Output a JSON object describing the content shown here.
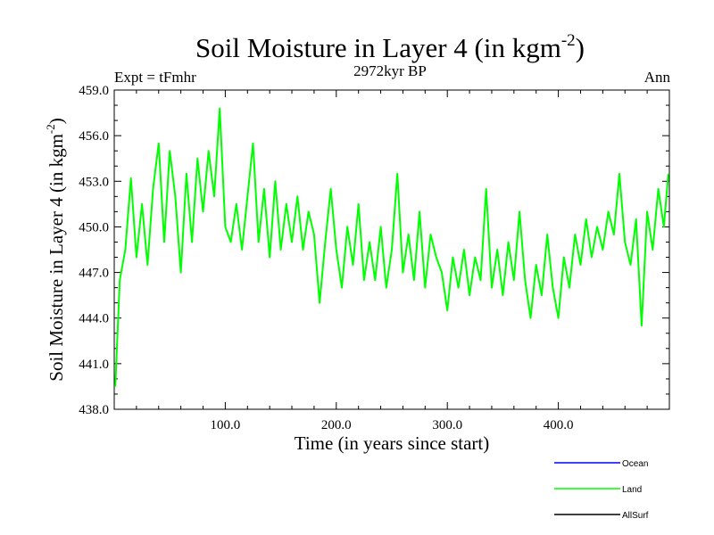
{
  "chart_data": {
    "type": "line",
    "title": "Soil Moisture in Layer 4 (in kgm",
    "title_superscript": "-2",
    "title_suffix": ")",
    "subtitle": "2972kyr BP",
    "left_label": "Expt = tFmhr",
    "right_label": "Ann",
    "xlabel": "Time (in years since start)",
    "ylabel": "Soil Moisture in Layer 4 (in kgm",
    "ylabel_superscript": "-2",
    "ylabel_suffix": ")",
    "xlim": [
      0,
      500
    ],
    "ylim": [
      438,
      459
    ],
    "x_ticks": [
      100,
      200,
      300,
      400
    ],
    "x_tick_labels": [
      "100.0",
      "200.0",
      "300.0",
      "400.0"
    ],
    "y_ticks": [
      438,
      441,
      444,
      447,
      450,
      453,
      456,
      459
    ],
    "y_tick_labels": [
      "438.0",
      "441.0",
      "444.0",
      "447.0",
      "450.0",
      "453.0",
      "456.0",
      "459.0"
    ],
    "legend_position": "bottom-right",
    "colors": {
      "Ocean": "#0000ff",
      "Land": "#00ff00",
      "AllSurf": "#000000"
    },
    "series": [
      {
        "name": "Ocean",
        "values": []
      },
      {
        "name": "Land",
        "x": [
          1,
          5,
          10,
          15,
          20,
          25,
          30,
          35,
          40,
          45,
          50,
          55,
          60,
          65,
          70,
          75,
          80,
          85,
          90,
          95,
          100,
          105,
          110,
          115,
          120,
          125,
          130,
          135,
          140,
          145,
          150,
          155,
          160,
          165,
          170,
          175,
          180,
          185,
          190,
          195,
          200,
          205,
          210,
          215,
          220,
          225,
          230,
          235,
          240,
          245,
          250,
          255,
          260,
          265,
          270,
          275,
          280,
          285,
          290,
          295,
          300,
          305,
          310,
          315,
          320,
          325,
          330,
          335,
          340,
          345,
          350,
          355,
          360,
          365,
          370,
          375,
          380,
          385,
          390,
          395,
          400,
          405,
          410,
          415,
          420,
          425,
          430,
          435,
          440,
          445,
          450,
          455,
          460,
          465,
          470,
          475,
          480,
          485,
          490,
          495,
          499
        ],
        "values": [
          439.5,
          446.5,
          448.5,
          453.2,
          448.0,
          451.5,
          447.5,
          452.5,
          455.5,
          449.0,
          455.0,
          452.0,
          447.0,
          453.5,
          449.0,
          454.5,
          451.0,
          455.0,
          452.0,
          457.8,
          450.0,
          449.0,
          451.5,
          448.5,
          452.0,
          455.5,
          449.0,
          452.5,
          448.0,
          453.0,
          448.5,
          451.5,
          449.0,
          452.0,
          448.5,
          451.0,
          449.5,
          445.0,
          449.0,
          452.5,
          448.5,
          446.0,
          450.0,
          447.5,
          451.5,
          446.5,
          449.0,
          446.5,
          450.0,
          446.0,
          448.5,
          453.5,
          447.0,
          449.5,
          446.5,
          451.0,
          446.0,
          449.5,
          448.0,
          447.0,
          444.5,
          448.0,
          446.0,
          448.5,
          445.5,
          448.0,
          446.5,
          452.5,
          446.0,
          448.5,
          445.5,
          449.0,
          446.5,
          451.0,
          446.5,
          444.0,
          447.5,
          445.5,
          449.5,
          446.0,
          444.0,
          448.0,
          446.0,
          449.5,
          447.5,
          450.5,
          448.0,
          450.0,
          448.5,
          451.0,
          449.5,
          453.5,
          449.0,
          447.5,
          450.5,
          443.5,
          451.0,
          448.5,
          452.5,
          450.0,
          453.5
        ]
      },
      {
        "name": "AllSurf",
        "values": []
      }
    ]
  }
}
